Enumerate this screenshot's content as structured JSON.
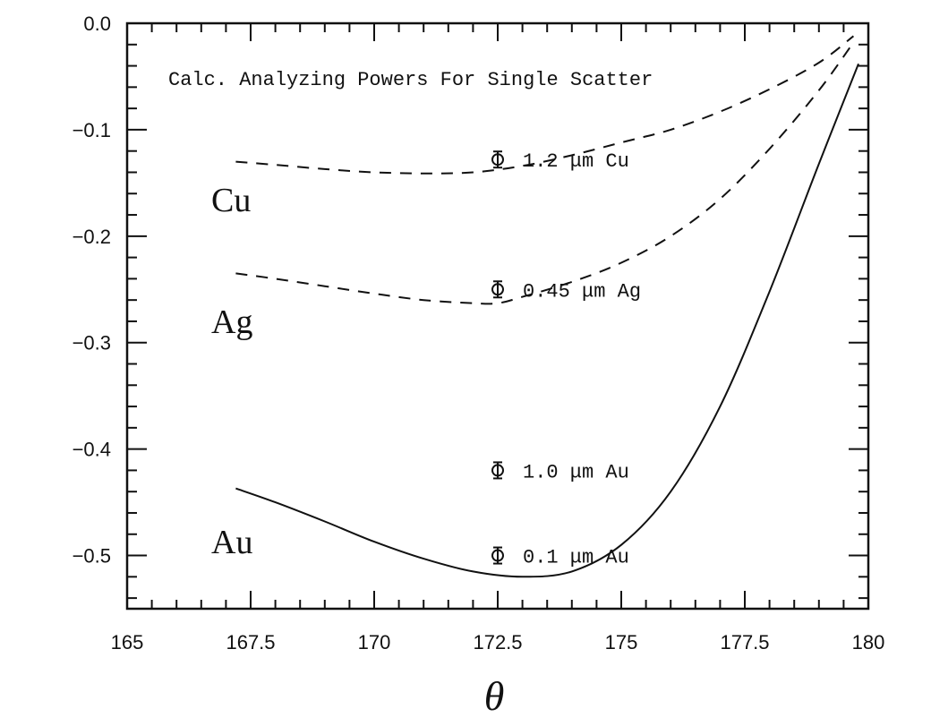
{
  "chart_data": {
    "type": "line",
    "title": "Calc. Analyzing Powers For Single Scatter",
    "xlabel": "θ",
    "ylabel": "",
    "xlim": [
      165,
      180
    ],
    "ylim": [
      -0.55,
      0.0
    ],
    "x_ticks": [
      "165",
      "167.5",
      "170",
      "172.5",
      "175",
      "177.5",
      "180"
    ],
    "y_ticks": [
      "0.0",
      "−0.1",
      "−0.2",
      "−0.3",
      "−0.4",
      "−0.5"
    ],
    "grid": false,
    "series": [
      {
        "name": "Cu",
        "style": "dashed",
        "x": [
          167.2,
          168,
          169,
          170,
          171,
          172,
          173,
          174,
          175,
          176,
          177,
          178,
          179,
          179.7
        ],
        "values": [
          -0.13,
          -0.133,
          -0.137,
          -0.14,
          -0.141,
          -0.14,
          -0.134,
          -0.124,
          -0.112,
          -0.1,
          -0.083,
          -0.062,
          -0.037,
          -0.012
        ]
      },
      {
        "name": "Ag",
        "style": "dashed",
        "x": [
          167.2,
          168,
          169,
          170,
          171,
          172,
          172.5,
          173,
          174,
          175,
          176,
          177,
          178,
          179,
          179.7
        ],
        "values": [
          -0.235,
          -0.24,
          -0.247,
          -0.254,
          -0.26,
          -0.263,
          -0.263,
          -0.257,
          -0.243,
          -0.225,
          -0.2,
          -0.165,
          -0.118,
          -0.063,
          -0.018
        ]
      },
      {
        "name": "Au",
        "style": "solid",
        "x": [
          167.2,
          168,
          169,
          170,
          171,
          172,
          173,
          174,
          175,
          176,
          177,
          178,
          179,
          179.8
        ],
        "values": [
          -0.437,
          -0.45,
          -0.468,
          -0.487,
          -0.503,
          -0.515,
          -0.52,
          -0.515,
          -0.49,
          -0.44,
          -0.36,
          -0.252,
          -0.132,
          -0.038
        ]
      }
    ],
    "series_labels": [
      "Cu",
      "Ag",
      "Au"
    ],
    "data_points": [
      {
        "x": 172.5,
        "y": -0.128,
        "label": "1.2 μm Cu"
      },
      {
        "x": 172.5,
        "y": -0.25,
        "label": "0.45 μm Ag"
      },
      {
        "x": 172.5,
        "y": -0.42,
        "label": "1.0 μm Au"
      },
      {
        "x": 172.5,
        "y": -0.5,
        "label": "0.1 μm Au"
      }
    ]
  }
}
